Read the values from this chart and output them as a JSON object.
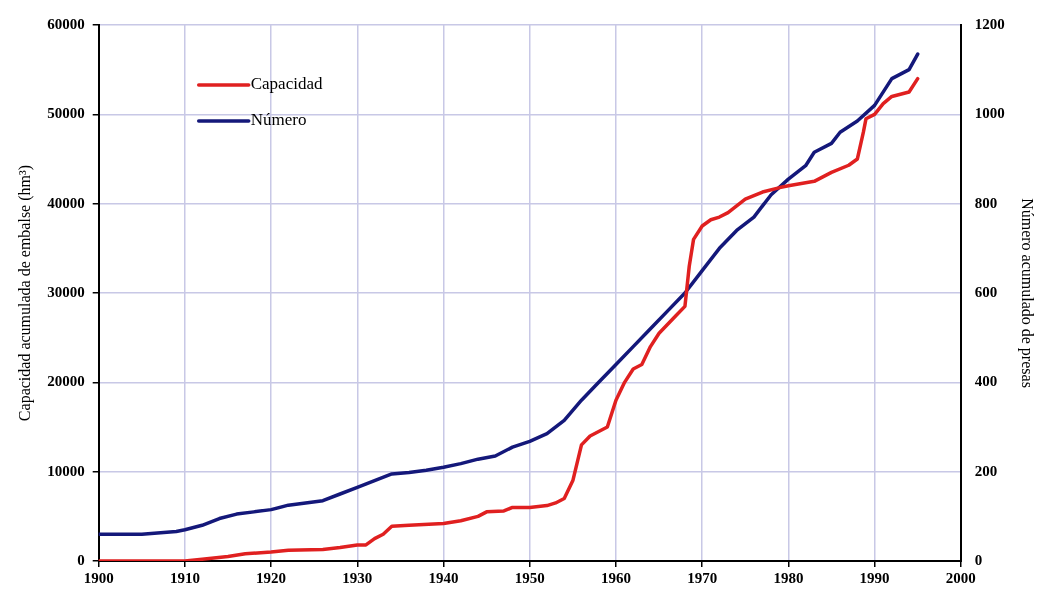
{
  "chart_data": {
    "type": "line",
    "ylabel": "Capacidad acumulada de embalse (hm³)",
    "y2label": "Número acumulado de presas",
    "xlim": [
      1900,
      2000
    ],
    "xticks": [
      1900,
      1910,
      1920,
      1930,
      1940,
      1950,
      1960,
      1970,
      1980,
      1990,
      2000
    ],
    "ylim": [
      0,
      60000
    ],
    "yticks": [
      0,
      10000,
      20000,
      30000,
      40000,
      50000,
      60000
    ],
    "y2lim": [
      0,
      1200
    ],
    "y2ticks": [
      0,
      200,
      400,
      600,
      800,
      1000,
      1200
    ],
    "grid": true,
    "legend": "top left",
    "marker": "none",
    "line_style": "solid",
    "series": [
      {
        "name": "Capacidad",
        "color": "#e02020",
        "x": [
          1900,
          1910,
          1912,
          1915,
          1917,
          1920,
          1922,
          1926,
          1928,
          1930,
          1931,
          1932,
          1933,
          1934,
          1936,
          1940,
          1942,
          1944,
          1945,
          1947,
          1948,
          1950,
          1952,
          1953,
          1954,
          1955,
          1956,
          1957,
          1958,
          1959,
          1960,
          1961,
          1962,
          1963,
          1964,
          1965,
          1966,
          1967,
          1968,
          1968.5,
          1969,
          1970,
          1971,
          1972,
          1973,
          1975,
          1977,
          1979,
          1980,
          1983,
          1985,
          1987,
          1988,
          1988.7,
          1989,
          1990,
          1991,
          1992,
          1994,
          1995
        ],
        "values": [
          0,
          0,
          200,
          500,
          800,
          1000,
          1200,
          1300,
          1500,
          1800,
          1800,
          2500,
          3000,
          3900,
          4000,
          4200,
          4500,
          5000,
          5500,
          5600,
          6000,
          6000,
          6200,
          6500,
          7000,
          9000,
          13000,
          14000,
          14500,
          15000,
          18000,
          20000,
          21500,
          22000,
          24000,
          25500,
          26500,
          27500,
          28500,
          33000,
          36000,
          37500,
          38200,
          38500,
          39000,
          40500,
          41300,
          41800,
          42000,
          42500,
          43500,
          44300,
          45000,
          48000,
          49500,
          50000,
          51200,
          52000,
          52500,
          54000
        ]
      },
      {
        "name": "Número",
        "color": "#14187a",
        "axis": "y2",
        "x": [
          1900,
          1905,
          1909,
          1910,
          1912,
          1914,
          1916,
          1918,
          1920,
          1922,
          1924,
          1926,
          1928,
          1930,
          1932,
          1934,
          1936,
          1938,
          1940,
          1942,
          1944,
          1946,
          1948,
          1950,
          1952,
          1954,
          1956,
          1958,
          1960,
          1962,
          1964,
          1966,
          1968,
          1970,
          1972,
          1974,
          1976,
          1978,
          1980,
          1982,
          1983,
          1985,
          1986,
          1988,
          1990,
          1992,
          1994,
          1995
        ],
        "values": [
          60,
          60,
          66,
          70,
          80,
          95,
          105,
          110,
          115,
          125,
          130,
          135,
          150,
          165,
          180,
          195,
          198,
          203,
          210,
          218,
          228,
          235,
          255,
          268,
          285,
          315,
          360,
          400,
          440,
          480,
          520,
          560,
          600,
          650,
          700,
          740,
          770,
          820,
          855,
          885,
          915,
          935,
          960,
          985,
          1020,
          1080,
          1100,
          1135
        ]
      }
    ]
  }
}
